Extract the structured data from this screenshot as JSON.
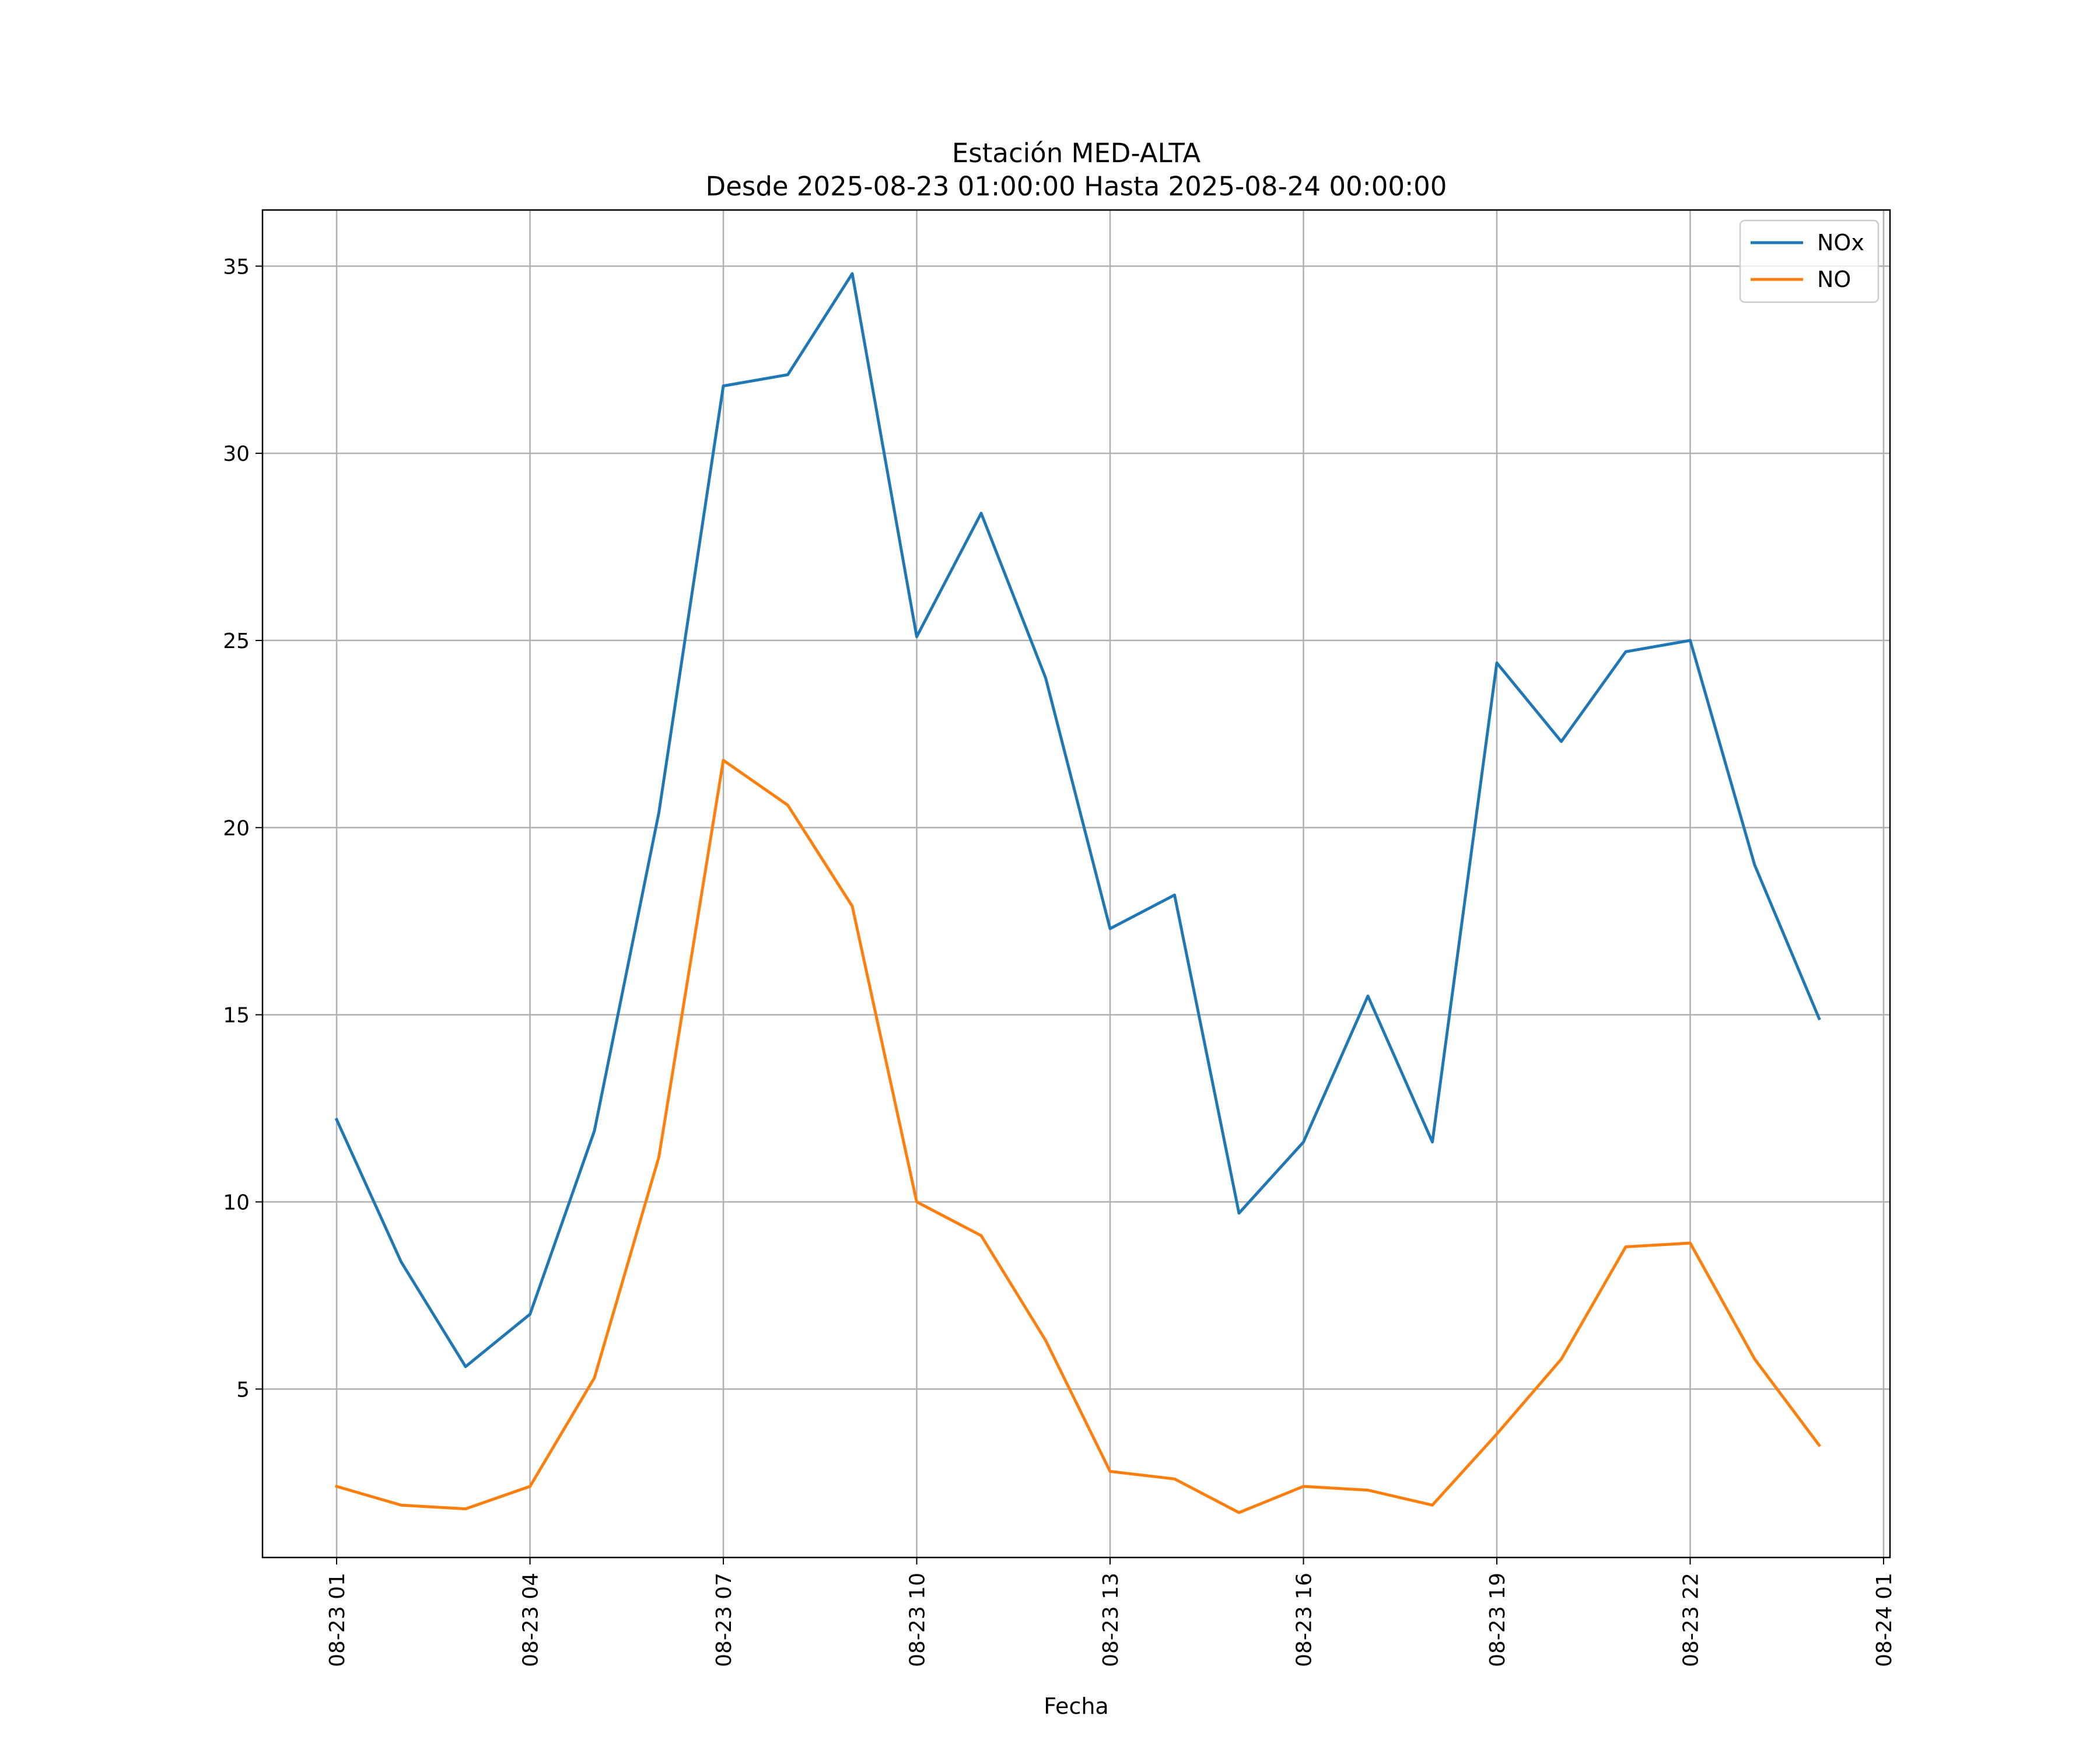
{
  "chart_data": {
    "type": "line",
    "title": "Estación MED-ALTA",
    "subtitle": "Desde 2025-08-23 01:00:00 Hasta 2025-08-24 00:00:00",
    "xlabel": "Fecha",
    "ylabel": "",
    "grid": true,
    "legend_position": "top-right",
    "x": [
      "08-23 01",
      "08-23 02",
      "08-23 03",
      "08-23 04",
      "08-23 05",
      "08-23 06",
      "08-23 07",
      "08-23 08",
      "08-23 09",
      "08-23 10",
      "08-23 11",
      "08-23 12",
      "08-23 13",
      "08-23 14",
      "08-23 15",
      "08-23 16",
      "08-23 17",
      "08-23 18",
      "08-23 19",
      "08-23 20",
      "08-23 21",
      "08-23 22",
      "08-23 23",
      "08-24 00"
    ],
    "x_ticks": [
      "08-23 01",
      "08-23 04",
      "08-23 07",
      "08-23 10",
      "08-23 13",
      "08-23 16",
      "08-23 19",
      "08-23 22",
      "08-24 01"
    ],
    "x_tick_hours": [
      0,
      3,
      6,
      9,
      12,
      15,
      18,
      21,
      24
    ],
    "xlim": [
      -1.15,
      24.1
    ],
    "ylim": [
      0.5,
      36.5
    ],
    "y_ticks": [
      5,
      10,
      15,
      20,
      25,
      30,
      35
    ],
    "y_tick_labels": [
      "5",
      "10",
      "15",
      "20",
      "25",
      "30",
      "35"
    ],
    "series": [
      {
        "name": "NOx",
        "color": "#1f77b4",
        "values": [
          12.2,
          8.4,
          5.6,
          7.0,
          11.9,
          20.4,
          31.8,
          32.1,
          34.8,
          25.1,
          28.4,
          24.0,
          17.3,
          18.2,
          9.7,
          11.6,
          15.5,
          11.6,
          24.4,
          22.3,
          24.7,
          25.0,
          19.0,
          14.9
        ]
      },
      {
        "name": "NO",
        "color": "#ff7f0e",
        "values": [
          2.4,
          1.9,
          1.8,
          2.4,
          5.3,
          11.2,
          21.8,
          20.6,
          17.9,
          10.0,
          9.1,
          6.3,
          2.8,
          2.6,
          1.7,
          2.4,
          2.3,
          1.9,
          3.8,
          5.8,
          8.8,
          8.9,
          5.8,
          3.5
        ]
      }
    ]
  }
}
